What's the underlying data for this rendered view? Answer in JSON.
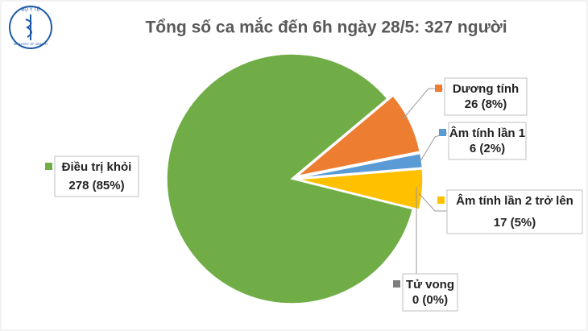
{
  "chart_data": {
    "type": "pie",
    "title": "Tổng số ca mắc đến 6h ngày 28/5: 327 người",
    "logo": {
      "top": "BỘ Y TẾ",
      "bottom": "MINISTRY OF HEALTH"
    },
    "categories": [
      "Điều trị khỏi",
      "Dương tính",
      "Âm tính lần 1",
      "Âm tính lần 2 trở lên",
      "Tử vong"
    ],
    "values": [
      278,
      26,
      6,
      17,
      0
    ],
    "value_labels": [
      "278 (85%)",
      "26 (8%)",
      "6 (2%)",
      "17 (5%)",
      "0 (0%)"
    ],
    "colors": [
      "#70ad47",
      "#ed7d31",
      "#5b9bd5",
      "#ffc000",
      "#7f7f7f"
    ]
  }
}
